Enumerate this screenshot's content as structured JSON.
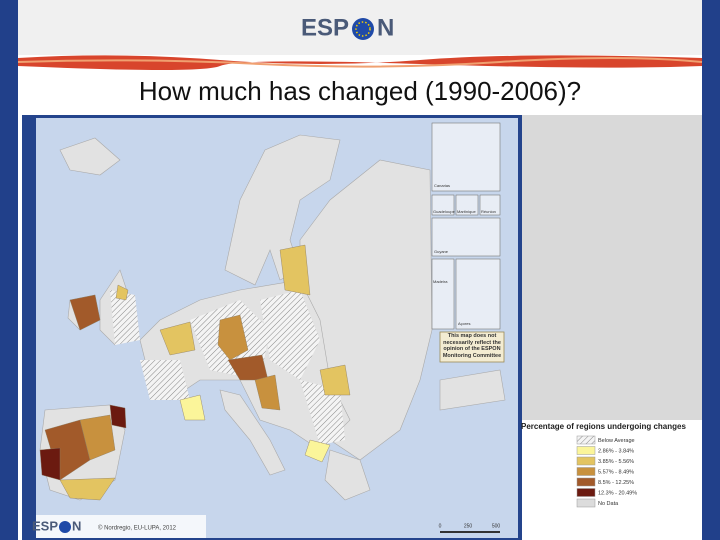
{
  "header": {
    "logo_left": "ESP",
    "logo_right": "N"
  },
  "title": "How much has changed (1990-2006)?",
  "map": {
    "insets": [
      "Canarias",
      "Guadeloupe",
      "Martinique",
      "Réunion",
      "Guyane",
      "Madeira",
      "Açores"
    ],
    "note": "This map does not necessarily reflect the opinion of the ESPON Monitoring Committee",
    "credit": "© Nordregio, EU-LUPA, 2012",
    "footer_logo_left": "ESP",
    "footer_logo_right": "N",
    "scale": [
      "0",
      "250",
      "500"
    ]
  },
  "legend": {
    "title": "Percentage of regions undergoing changes",
    "items": [
      {
        "label": "Below Average",
        "color": "hatch"
      },
      {
        "label": "2.86% - 3.84%",
        "color": "#fbf59a"
      },
      {
        "label": "3.85% - 5.56%",
        "color": "#e3c461"
      },
      {
        "label": "5.57% - 8.49%",
        "color": "#c8913e"
      },
      {
        "label": "8.5% - 12.25%",
        "color": "#a25a2a"
      },
      {
        "label": "12.3% - 20.49%",
        "color": "#6b1a10"
      },
      {
        "label": "No Data",
        "color": "#dcdcdc"
      }
    ]
  }
}
